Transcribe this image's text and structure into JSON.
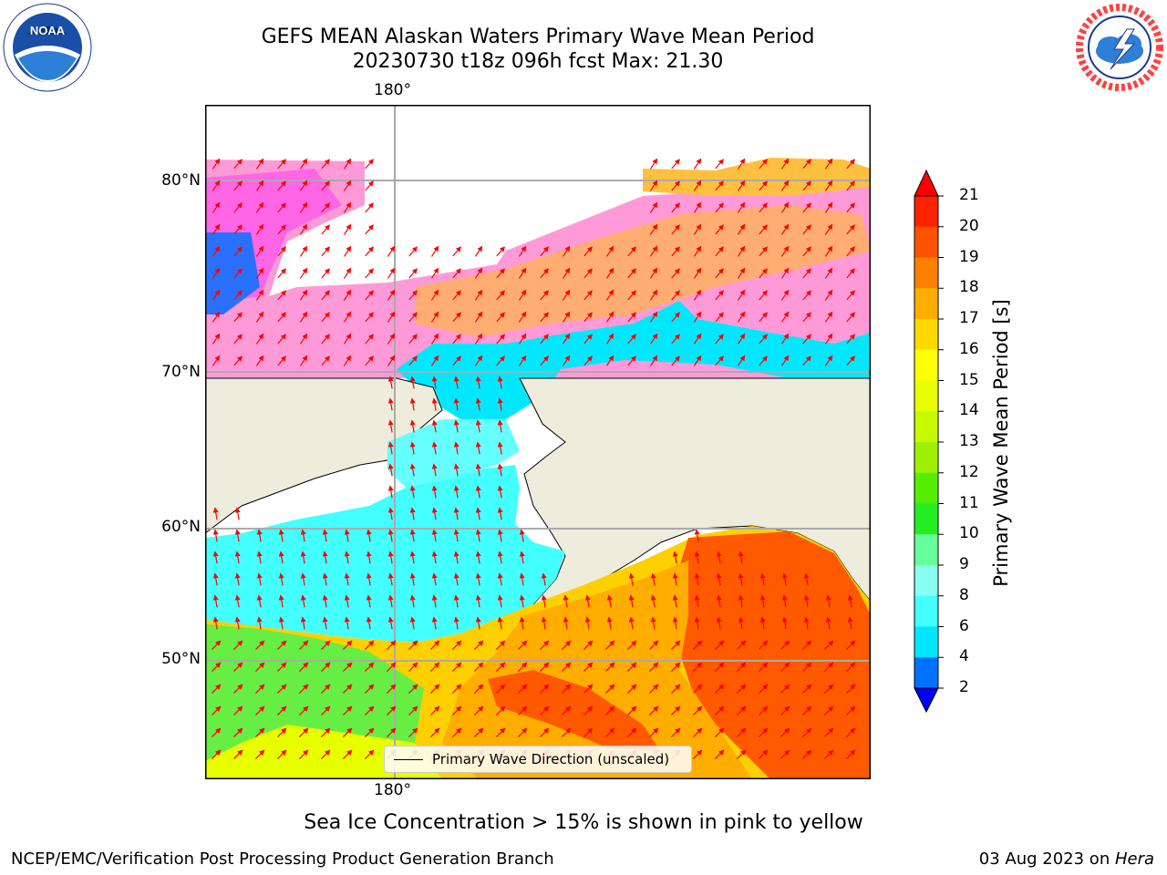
{
  "title": {
    "line1": "GEFS MEAN Alaskan Waters Primary Wave Mean Period",
    "line2": "20230730 t18z 096h fcst   Max: 21.30"
  },
  "map": {
    "lon_top_label": "180°",
    "lon_bottom_label": "180°",
    "lat_labels": [
      "80°N",
      "70°N",
      "60°N",
      "50°N"
    ],
    "legend_label": "Primary Wave Direction (unscaled)",
    "land_color": "#eeecdc",
    "arrow_color": "#ff0000"
  },
  "colorbar": {
    "title": "Primary Wave Mean Period [s]",
    "ticks": [
      "21",
      "20",
      "19",
      "18",
      "17",
      "16",
      "15",
      "14",
      "13",
      "12",
      "11",
      "10",
      "9",
      "8",
      "6",
      "4",
      "2"
    ],
    "colors": [
      "#ff2200",
      "#ff5200",
      "#ff8000",
      "#ffae00",
      "#ffd800",
      "#ffff00",
      "#e8ff00",
      "#c8f800",
      "#9ff000",
      "#55ee00",
      "#22ee22",
      "#66ff99",
      "#88fff0",
      "#44ffff",
      "#00e6ff",
      "#0070ff"
    ],
    "under_color": "#0000ff",
    "over_color": "#ff0000"
  },
  "subtitle": "Sea Ice Concentration > 15% is shown in pink to yellow",
  "footer": {
    "left": "NCEP/EMC/Verification Post Processing Product Generation Branch",
    "date": "03 Aug 2023 on ",
    "machine": "Hera"
  },
  "logos": {
    "noaa_text": "NOAA",
    "nws_text": "NATIONAL WEATHER SERVICE"
  }
}
